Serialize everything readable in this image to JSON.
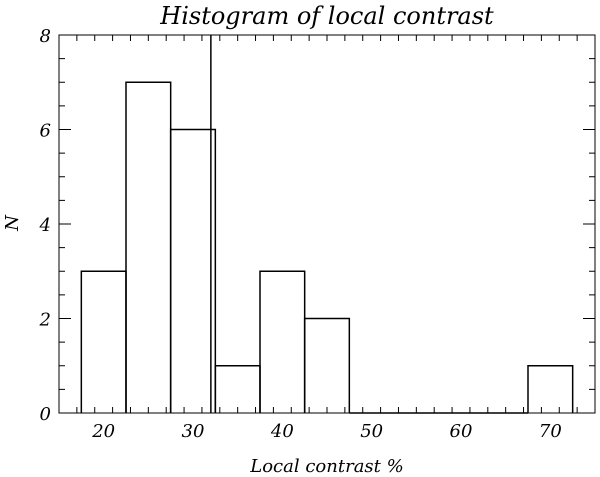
{
  "chart_data": {
    "type": "bar",
    "title": "Histogram of local contrast",
    "xlabel": "Local contrast %",
    "ylabel": "N",
    "xlim": [
      15,
      75
    ],
    "ylim": [
      0,
      8
    ],
    "bin_width": 5,
    "bins": [
      {
        "x_start": 17.5,
        "x_end": 22.5,
        "count": 3
      },
      {
        "x_start": 22.5,
        "x_end": 27.5,
        "count": 7
      },
      {
        "x_start": 27.5,
        "x_end": 32.5,
        "count": 6
      },
      {
        "x_start": 32.5,
        "x_end": 37.5,
        "count": 1
      },
      {
        "x_start": 37.5,
        "x_end": 42.5,
        "count": 3
      },
      {
        "x_start": 42.5,
        "x_end": 47.5,
        "count": 2
      },
      {
        "x_start": 47.5,
        "x_end": 52.5,
        "count": 0
      },
      {
        "x_start": 52.5,
        "x_end": 57.5,
        "count": 0
      },
      {
        "x_start": 57.5,
        "x_end": 62.5,
        "count": 0
      },
      {
        "x_start": 62.5,
        "x_end": 67.5,
        "count": 0
      },
      {
        "x_start": 67.5,
        "x_end": 72.5,
        "count": 1
      }
    ],
    "vertical_line_x": 32,
    "x_ticks": [
      "20",
      "30",
      "40",
      "50",
      "60",
      "70"
    ],
    "y_ticks": [
      "0",
      "2",
      "4",
      "6",
      "8"
    ],
    "grid": false,
    "legend": "none",
    "line_color": "#000000"
  }
}
